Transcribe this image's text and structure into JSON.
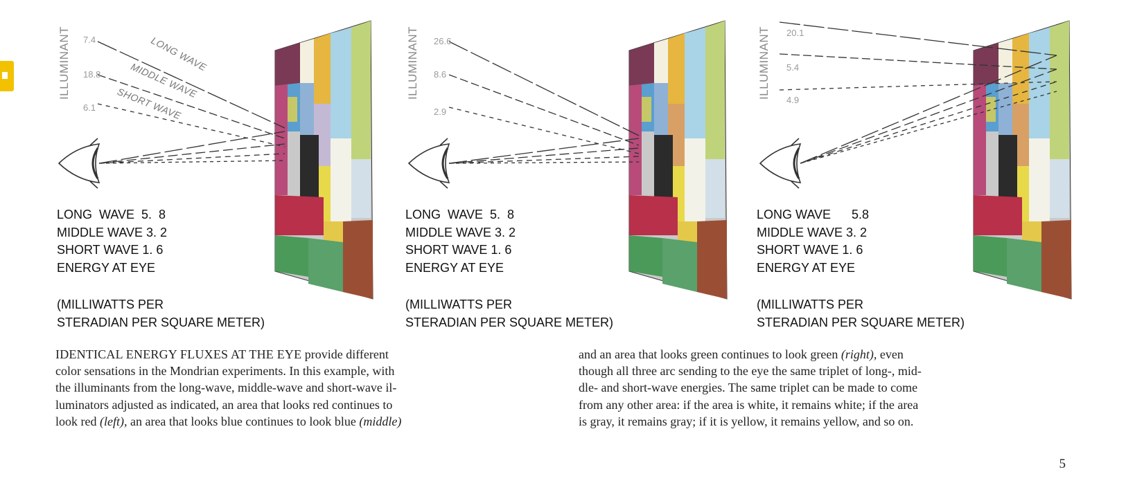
{
  "marker": {
    "color": "#f2c200"
  },
  "panels": [
    {
      "illuminant_label": "ILLUMINANT",
      "values": [
        "7.4",
        "18.8",
        "6.1"
      ],
      "wave_labels": [
        "LONG WAVE",
        "MIDDLE WAVE",
        "SHORT WAVE"
      ],
      "energy": {
        "long": "LONG  WAVE  5.  8",
        "middle": "MIDDLE WAVE 3. 2",
        "short": "SHORT WAVE 1. 6",
        "title": "ENERGY AT EYE"
      },
      "units": {
        "line1": "(MILLIWATTS PER",
        "line2": "STERADIAN PER SQUARE METER)"
      }
    },
    {
      "illuminant_label": "ILLUMINANT",
      "values": [
        "26.6",
        "8.6",
        "2.9"
      ],
      "energy": {
        "long": "LONG  WAVE  5.  8",
        "middle": "MIDDLE WAVE 3. 2",
        "short": "SHORT WAVE 1. 6",
        "title": "ENERGY AT EYE"
      },
      "units": {
        "line1": "(MILLIWATTS PER",
        "line2": "STERADIAN PER SQUARE METER)"
      }
    },
    {
      "illuminant_label": "ILLUMINANT",
      "values": [
        "20.1",
        "5.4",
        "4.9"
      ],
      "energy": {
        "long": "LONG WAVE      5.8",
        "middle": "MIDDLE WAVE 3. 2",
        "short": "SHORT WAVE 1. 6",
        "title": "ENERGY AT EYE"
      },
      "units": {
        "line1": "(MILLIWATTS PER",
        "line2": "STERADIAN PER SQUARE METER)"
      }
    }
  ],
  "caption": {
    "left": {
      "lead": "IDENTICAL ENERGY FLUXES AT THE EYE",
      "lines": [
        " provide different",
        "color sensations in the Mondrian experiments. In this example, with",
        "the illuminants from the long-wave, middle-wave and short-wave il-",
        "luminators adjusted as indicated, an area that looks red continues to"
      ],
      "last_a": "look red ",
      "left_word": "(left),",
      "last_b": " an area that looks blue continues to look blue ",
      "middle_word": "(middle)"
    },
    "right": {
      "first_a": "and an area that looks green continues to look green ",
      "right_word": "(right),",
      "first_b": " even",
      "lines": [
        "though all three arc sending to the eye the same triplet of long-, mid-",
        "dle- and short-wave energies. The same triplet can be made to come",
        "from any other area: if the area is white, it remains white; if the area",
        "is gray, it remains gray; if it is yellow, it remains yellow, and so on."
      ]
    }
  },
  "page_number": "5"
}
